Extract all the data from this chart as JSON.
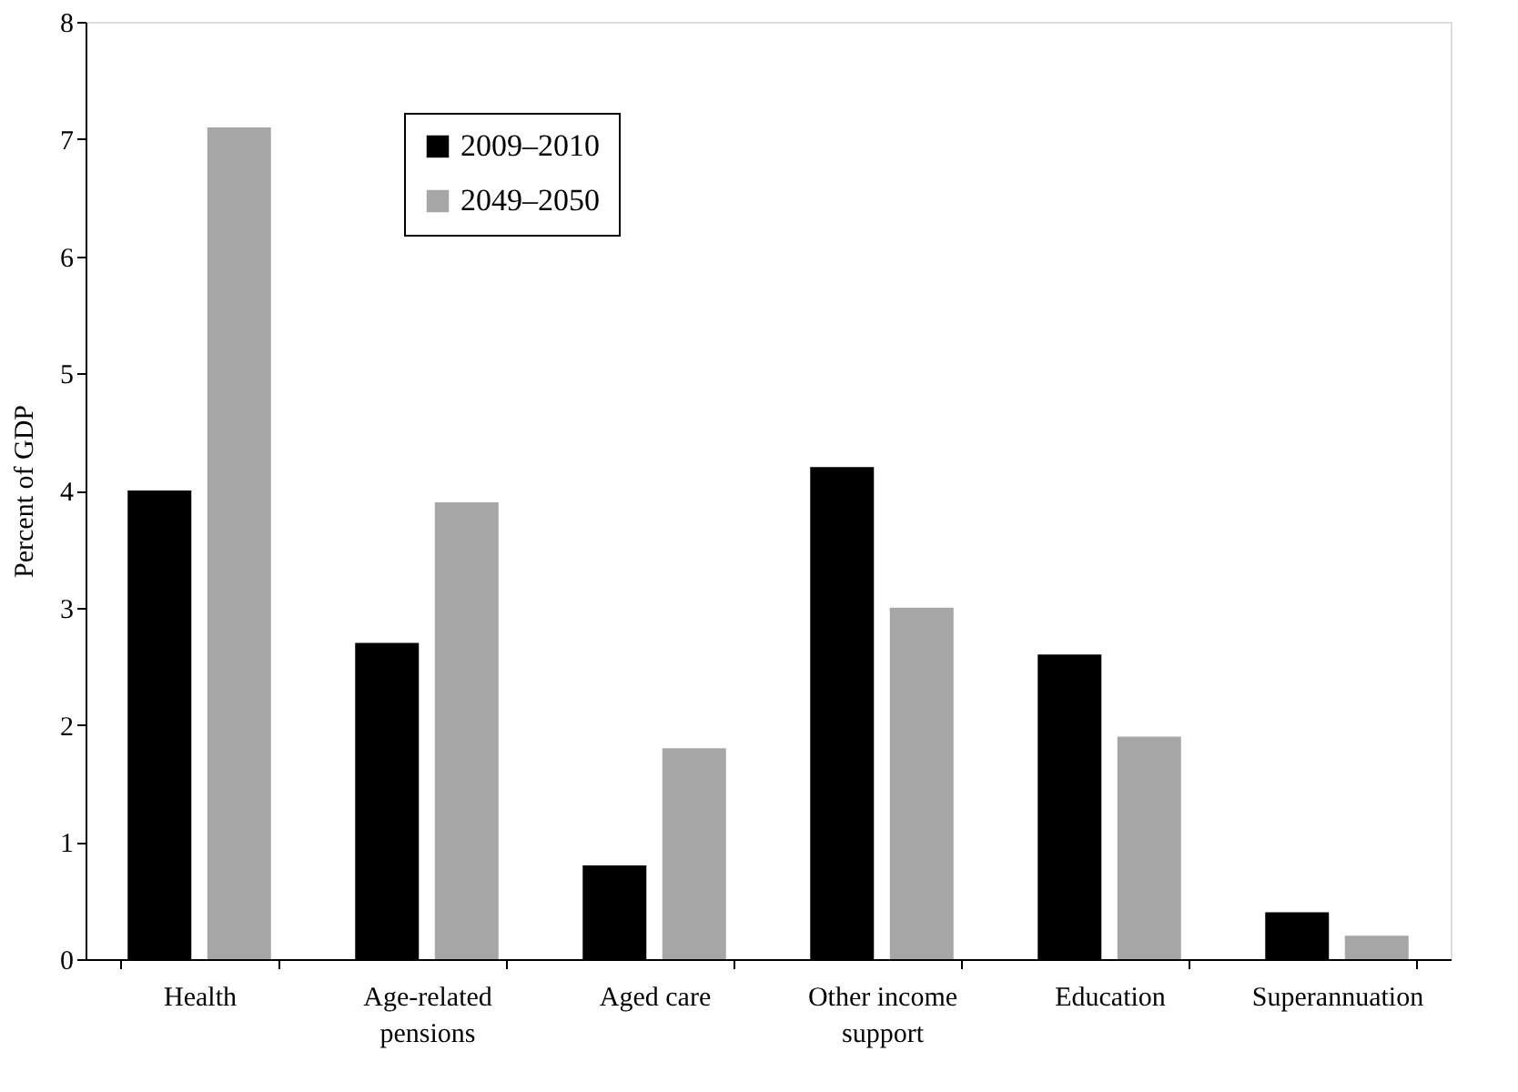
{
  "chart_data": {
    "type": "bar",
    "ylabel": "Percent of GDP",
    "categories": [
      "Health",
      "Age-related pensions",
      "Aged care",
      "Other income support",
      "Education",
      "Superannuation"
    ],
    "series": [
      {
        "name": "2009–2010",
        "color": "#000000",
        "values": [
          4.0,
          2.7,
          0.8,
          4.2,
          2.6,
          0.4
        ]
      },
      {
        "name": "2049–2050",
        "color": "#a6a6a6",
        "values": [
          7.1,
          3.9,
          1.8,
          3.0,
          1.9,
          0.2
        ]
      }
    ],
    "ylim": [
      0,
      8
    ],
    "yticks": [
      0,
      1,
      2,
      3,
      4,
      5,
      6,
      7,
      8
    ],
    "grid": false,
    "legend": "top left"
  }
}
